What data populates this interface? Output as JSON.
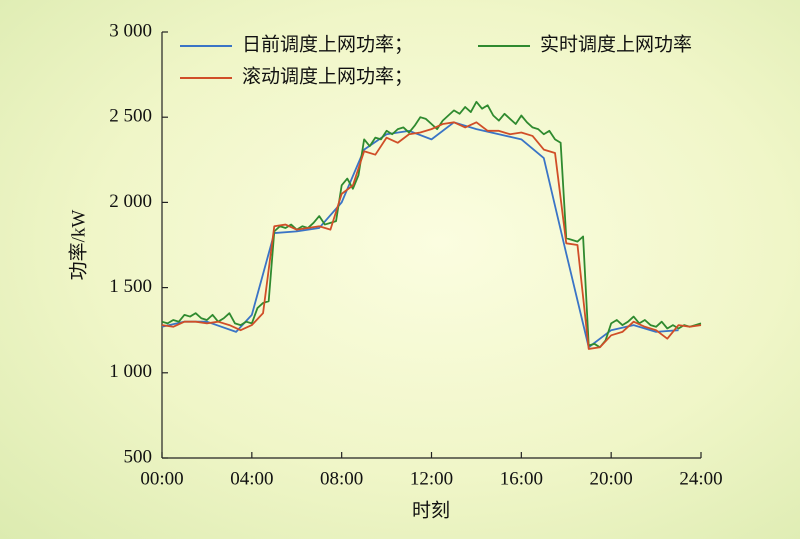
{
  "chart_data": {
    "type": "line",
    "x_label": "时刻",
    "y_label": "功率/kW",
    "xlim": [
      0,
      24
    ],
    "xticks": [
      {
        "value": 0,
        "label": "00:00"
      },
      {
        "value": 4,
        "label": "04:00"
      },
      {
        "value": 8,
        "label": "08:00"
      },
      {
        "value": 12,
        "label": "12:00"
      },
      {
        "value": 16,
        "label": "16:00"
      },
      {
        "value": 20,
        "label": "20:00"
      },
      {
        "value": 24,
        "label": "24:00"
      }
    ],
    "ylim": [
      500,
      3000
    ],
    "yticks": [
      500,
      {
        "value": 1000,
        "label": "1 000"
      },
      {
        "value": 1500,
        "label": "1 500"
      },
      {
        "value": 2000,
        "label": "2 000"
      },
      {
        "value": 2500,
        "label": "2 500"
      },
      {
        "value": 3000,
        "label": "3 000"
      }
    ],
    "grid": false,
    "legend": "top",
    "series": [
      {
        "name": "日前调度上网功率；",
        "color": "#3a74c6",
        "x": [
          0,
          1,
          2,
          3.3,
          4,
          5,
          6,
          7,
          8,
          9,
          10,
          11,
          12,
          13,
          14,
          15,
          16,
          17,
          18,
          19,
          20,
          21,
          22,
          23
        ],
        "values": [
          1270,
          1300,
          1300,
          1240,
          1340,
          1820,
          1830,
          1850,
          2000,
          2310,
          2400,
          2420,
          2370,
          2470,
          2430,
          2400,
          2370,
          2260,
          1700,
          1150,
          1250,
          1280,
          1240,
          1250
        ]
      },
      {
        "name": "实时调度上网功率",
        "color": "#2f8a2f",
        "x": [
          0,
          0.25,
          0.5,
          0.75,
          1,
          1.25,
          1.5,
          1.75,
          2,
          2.25,
          2.5,
          2.75,
          3,
          3.25,
          3.5,
          3.75,
          4,
          4.25,
          4.5,
          4.75,
          5,
          5.25,
          5.5,
          5.75,
          6,
          6.25,
          6.5,
          6.75,
          7,
          7.25,
          7.5,
          7.75,
          8,
          8.25,
          8.5,
          8.75,
          9,
          9.25,
          9.5,
          9.75,
          10,
          10.25,
          10.5,
          10.75,
          11,
          11.25,
          11.5,
          11.75,
          12,
          12.25,
          12.5,
          12.75,
          13,
          13.25,
          13.5,
          13.75,
          14,
          14.25,
          14.5,
          14.75,
          15,
          15.25,
          15.5,
          15.75,
          16,
          16.25,
          16.5,
          16.75,
          17,
          17.25,
          17.5,
          17.75,
          18,
          18.25,
          18.5,
          18.75,
          19,
          19.25,
          19.5,
          19.75,
          20,
          20.25,
          20.5,
          20.75,
          21,
          21.25,
          21.5,
          21.75,
          22,
          22.25,
          22.5,
          22.75,
          23,
          23.25,
          23.5,
          23.75,
          24
        ],
        "values": [
          1300,
          1290,
          1310,
          1300,
          1340,
          1330,
          1350,
          1320,
          1310,
          1340,
          1300,
          1320,
          1350,
          1290,
          1280,
          1300,
          1290,
          1380,
          1410,
          1420,
          1830,
          1860,
          1850,
          1870,
          1840,
          1860,
          1850,
          1880,
          1920,
          1870,
          1880,
          1890,
          2100,
          2140,
          2080,
          2160,
          2370,
          2330,
          2380,
          2370,
          2420,
          2400,
          2430,
          2440,
          2410,
          2450,
          2500,
          2490,
          2460,
          2430,
          2480,
          2510,
          2540,
          2520,
          2560,
          2530,
          2590,
          2550,
          2570,
          2510,
          2480,
          2520,
          2490,
          2460,
          2510,
          2470,
          2440,
          2430,
          2400,
          2420,
          2370,
          2350,
          1790,
          1780,
          1770,
          1800,
          1160,
          1170,
          1150,
          1190,
          1290,
          1310,
          1280,
          1300,
          1330,
          1290,
          1310,
          1280,
          1270,
          1300,
          1260,
          1280,
          1260,
          1280,
          1270,
          1280,
          1290
        ]
      },
      {
        "name": "滚动调度上网功率；",
        "color": "#d04e28",
        "x": [
          0,
          0.5,
          1,
          1.5,
          2,
          2.5,
          3,
          3.5,
          4,
          4.5,
          5,
          5.5,
          6,
          6.5,
          7,
          7.5,
          8,
          8.5,
          9,
          9.5,
          10,
          10.5,
          11,
          11.5,
          12,
          12.5,
          13,
          13.5,
          14,
          14.5,
          15,
          15.5,
          16,
          16.5,
          17,
          17.5,
          18,
          18.5,
          19,
          19.5,
          20,
          20.5,
          21,
          21.5,
          22,
          22.5,
          23,
          23.5,
          24
        ],
        "values": [
          1280,
          1270,
          1300,
          1300,
          1290,
          1300,
          1280,
          1250,
          1280,
          1350,
          1860,
          1870,
          1840,
          1850,
          1860,
          1840,
          2050,
          2100,
          2300,
          2280,
          2380,
          2350,
          2400,
          2410,
          2430,
          2460,
          2470,
          2440,
          2470,
          2420,
          2420,
          2400,
          2410,
          2390,
          2310,
          2290,
          1760,
          1750,
          1140,
          1150,
          1220,
          1240,
          1300,
          1270,
          1250,
          1200,
          1280,
          1270,
          1280
        ]
      }
    ]
  }
}
